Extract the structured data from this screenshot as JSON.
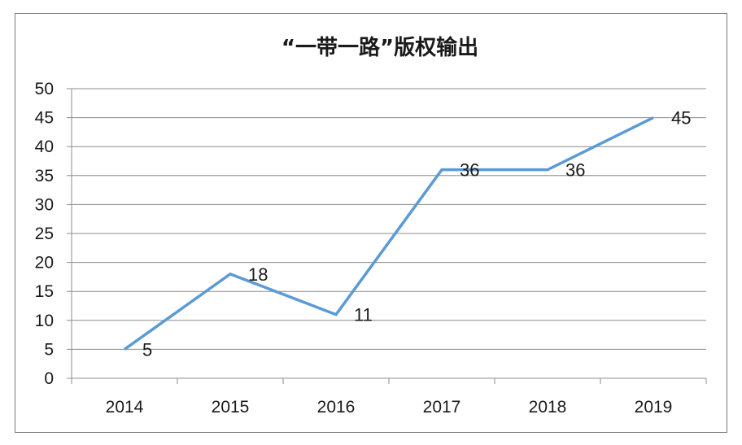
{
  "chart_data": {
    "type": "line",
    "title": "“一带一路”版权输出",
    "xlabel": "",
    "ylabel": "",
    "categories": [
      "2014",
      "2015",
      "2016",
      "2017",
      "2018",
      "2019"
    ],
    "series": [
      {
        "values": [
          5,
          18,
          11,
          36,
          36,
          45
        ],
        "color": "#5b9bd5"
      }
    ],
    "ylim": [
      0,
      50
    ],
    "yticks": [
      "0",
      "5",
      "10",
      "15",
      "20",
      "25",
      "30",
      "35",
      "40",
      "45",
      "50"
    ],
    "data_labels": [
      "5",
      "18",
      "11",
      "36",
      "36",
      "45"
    ],
    "grid": true,
    "legend": "none"
  }
}
